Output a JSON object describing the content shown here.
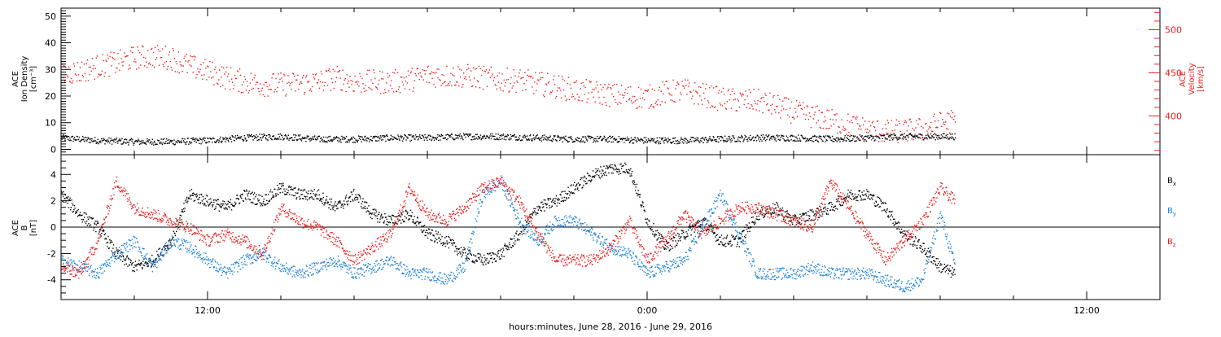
{
  "chart_data": [
    {
      "type": "scatter",
      "title": "",
      "xlabel": "hours:minutes, June 28, 2016 - June 29, 2016",
      "ylabel_left": [
        "ACE",
        "Ion Density",
        "[cm⁻³]"
      ],
      "ylabel_right": [
        "ACE",
        "Velocity",
        "[km/s]"
      ],
      "x_ticks": [
        "12:00",
        "0:00",
        "12:00"
      ],
      "x_tick_hours": [
        12,
        24,
        36
      ],
      "xlim_hours": [
        8.0,
        38.0
      ],
      "data_end_hour": 32.4,
      "ylim_left": [
        -2,
        53
      ],
      "yticks_left": [
        0,
        10,
        20,
        30,
        40,
        50
      ],
      "ylim_right": [
        355,
        525
      ],
      "yticks_right": [
        400,
        450,
        500
      ],
      "series": [
        {
          "name": "",
          "axis": "left",
          "color": "#000000",
          "x": [
            8,
            9,
            10,
            11,
            12,
            13,
            14,
            15,
            16,
            17,
            18,
            19,
            20,
            21,
            22,
            23,
            24,
            25,
            26,
            27,
            28,
            29,
            30,
            31,
            32,
            32.4
          ],
          "y": [
            4.5,
            3.5,
            3.0,
            3.0,
            3.5,
            4.5,
            5.0,
            4.0,
            4.0,
            4.5,
            4.5,
            5.0,
            5.0,
            4.5,
            4.0,
            4.0,
            3.5,
            3.5,
            4.0,
            4.5,
            4.5,
            4.0,
            4.5,
            5.0,
            5.0,
            5.0
          ]
        },
        {
          "name": "",
          "axis": "right",
          "color": "#e8201e",
          "x": [
            8,
            8.5,
            9,
            9.5,
            10,
            10.5,
            11,
            11.5,
            12,
            12.5,
            13,
            13.5,
            14,
            14.5,
            15,
            15.5,
            16,
            16.5,
            17,
            17.5,
            18,
            18.5,
            19,
            19.5,
            20,
            20.5,
            21,
            21.5,
            22,
            22.5,
            23,
            23.5,
            24,
            24.5,
            25,
            25.5,
            26,
            26.5,
            27,
            27.5,
            28,
            28.5,
            29,
            29.5,
            30,
            30.5,
            31,
            31.5,
            32,
            32.4
          ],
          "y": [
            450,
            452,
            458,
            462,
            468,
            470,
            468,
            458,
            452,
            445,
            440,
            437,
            437,
            438,
            440,
            445,
            440,
            440,
            440,
            442,
            448,
            447,
            447,
            445,
            442,
            442,
            438,
            435,
            430,
            428,
            425,
            423,
            422,
            428,
            430,
            425,
            420,
            418,
            418,
            412,
            405,
            400,
            395,
            390,
            385,
            382,
            383,
            385,
            392,
            395
          ]
        }
      ]
    },
    {
      "type": "scatter",
      "title": "",
      "ylabel": [
        "ACE",
        "B",
        "[nT]"
      ],
      "ylim": [
        -5.5,
        5.5
      ],
      "yticks": [
        -4,
        -2,
        0,
        2,
        4
      ],
      "zero_line": true,
      "legend_position": "right",
      "series": [
        {
          "name": "Bx",
          "color": "#000000",
          "x": [
            8,
            8.5,
            9,
            9.5,
            10,
            10.5,
            11,
            11.5,
            12,
            12.5,
            13,
            13.5,
            14,
            14.5,
            15,
            15.5,
            16,
            16.5,
            17,
            17.5,
            18,
            18.5,
            19,
            19.5,
            20,
            20.5,
            21,
            21.5,
            22,
            22.5,
            23,
            23.5,
            24,
            24.5,
            25,
            25.5,
            26,
            26.5,
            27,
            27.5,
            28,
            28.5,
            29,
            29.5,
            30,
            30.5,
            31,
            31.5,
            32,
            32.4
          ],
          "y": [
            2.5,
            1.0,
            0.0,
            -2.0,
            -3.0,
            -2.5,
            -1.0,
            2.5,
            2.0,
            1.5,
            2.5,
            2.0,
            3.0,
            2.5,
            2.5,
            1.5,
            2.5,
            1.0,
            0.5,
            1.0,
            -0.5,
            -1.0,
            -2.0,
            -2.5,
            -2.0,
            -0.5,
            1.5,
            2.0,
            3.0,
            4.0,
            4.5,
            4.5,
            0.5,
            -1.5,
            -0.5,
            0.5,
            -1.0,
            -1.0,
            1.0,
            1.5,
            0.5,
            1.0,
            1.5,
            2.5,
            2.5,
            1.5,
            -0.5,
            -1.5,
            -3.0,
            -3.5
          ]
        },
        {
          "name": "By",
          "color": "#1b7fd6",
          "x": [
            8,
            8.5,
            9,
            9.5,
            10,
            10.5,
            11,
            11.5,
            12,
            12.5,
            13,
            13.5,
            14,
            14.5,
            15,
            15.5,
            16,
            16.5,
            17,
            17.5,
            18,
            18.5,
            19,
            19.5,
            20,
            20.5,
            21,
            21.5,
            22,
            22.5,
            23,
            23.5,
            24,
            24.5,
            25,
            25.5,
            26,
            26.5,
            27,
            27.5,
            28,
            28.5,
            29,
            29.5,
            30,
            30.5,
            31,
            31.5,
            32,
            32.4
          ],
          "y": [
            -2.5,
            -3.0,
            -3.5,
            -2.0,
            -1.0,
            -3.0,
            -1.0,
            -1.5,
            -2.5,
            -3.5,
            -2.5,
            -2.0,
            -3.0,
            -3.5,
            -3.0,
            -2.5,
            -3.5,
            -3.0,
            -2.5,
            -3.5,
            -3.5,
            -4.0,
            -3.0,
            2.5,
            3.5,
            0.5,
            -1.0,
            0.5,
            0.5,
            -0.5,
            -1.5,
            -2.0,
            -3.5,
            -3.0,
            -2.5,
            0.0,
            2.5,
            -0.5,
            -3.5,
            -3.5,
            -3.5,
            -3.0,
            -3.5,
            -3.5,
            -3.5,
            -4.0,
            -4.5,
            -4.0,
            1.0,
            -3.0
          ]
        },
        {
          "name": "Bz",
          "color": "#e8201e",
          "x": [
            8,
            8.5,
            9,
            9.5,
            10,
            10.5,
            11,
            11.5,
            12,
            12.5,
            13,
            13.5,
            14,
            14.5,
            15,
            15.5,
            16,
            16.5,
            17,
            17.5,
            18,
            18.5,
            19,
            19.5,
            20,
            20.5,
            21,
            21.5,
            22,
            22.5,
            23,
            23.5,
            24,
            24.5,
            25,
            25.5,
            26,
            26.5,
            27,
            27.5,
            28,
            28.5,
            29,
            29.5,
            30,
            30.5,
            31,
            31.5,
            32,
            32.4
          ],
          "y": [
            -3.0,
            -3.5,
            -1.0,
            3.5,
            1.5,
            1.0,
            0.5,
            0.0,
            -1.0,
            -0.5,
            -1.0,
            -2.0,
            1.5,
            0.5,
            0.0,
            -1.0,
            -2.5,
            -1.5,
            -0.5,
            3.0,
            1.0,
            0.5,
            1.5,
            3.0,
            3.5,
            2.0,
            -0.5,
            -2.5,
            -2.5,
            -2.5,
            -1.5,
            0.5,
            -2.5,
            -1.0,
            1.0,
            -0.5,
            0.5,
            1.5,
            1.5,
            1.0,
            0.5,
            0.0,
            3.5,
            1.5,
            -0.5,
            -2.5,
            -1.0,
            0.5,
            3.0,
            2.0
          ]
        }
      ],
      "legend": [
        {
          "name": "B",
          "sub": "x",
          "color": "#000000"
        },
        {
          "name": "B",
          "sub": "y",
          "color": "#1b7fd6"
        },
        {
          "name": "B",
          "sub": "z",
          "color": "#e8201e"
        }
      ]
    }
  ]
}
